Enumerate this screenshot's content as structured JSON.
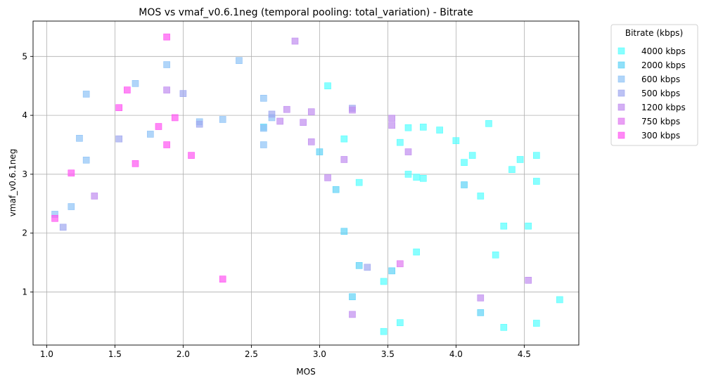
{
  "chart_data": {
    "type": "scatter",
    "title": "MOS vs vmaf_v0.6.1neg (temporal pooling: total_variation) - Bitrate",
    "xlabel": "MOS",
    "ylabel": "vmaf_v0.6.1neg",
    "xlim": [
      0.9,
      4.9
    ],
    "ylim": [
      0.1,
      5.6
    ],
    "xticks": [
      1.0,
      1.5,
      2.0,
      2.5,
      3.0,
      3.5,
      4.0,
      4.5
    ],
    "xtick_labels": [
      "1.0",
      "1.5",
      "2.0",
      "2.5",
      "3.0",
      "3.5",
      "4.0",
      "4.5"
    ],
    "yticks": [
      1,
      2,
      3,
      4,
      5
    ],
    "ytick_labels": [
      "1",
      "2",
      "3",
      "4",
      "5"
    ],
    "grid": true,
    "marker": "square",
    "legend": {
      "title": "Bitrate (kbps)",
      "placement": "outside-top-right"
    },
    "series": [
      {
        "name": "4000 kbps",
        "color": "#55ffff",
        "points": [
          [
            3.06,
            4.5
          ],
          [
            3.18,
            3.6
          ],
          [
            3.29,
            2.86
          ],
          [
            3.47,
            1.18
          ],
          [
            3.47,
            0.33
          ],
          [
            3.59,
            3.54
          ],
          [
            3.59,
            0.48
          ],
          [
            3.65,
            3.79
          ],
          [
            3.65,
            3.0
          ],
          [
            3.71,
            2.95
          ],
          [
            3.71,
            1.68
          ],
          [
            3.76,
            3.8
          ],
          [
            3.76,
            2.93
          ],
          [
            3.88,
            3.75
          ],
          [
            4.0,
            3.57
          ],
          [
            4.06,
            3.2
          ],
          [
            4.12,
            3.32
          ],
          [
            4.18,
            2.63
          ],
          [
            4.24,
            3.86
          ],
          [
            4.29,
            1.63
          ],
          [
            4.35,
            2.12
          ],
          [
            4.35,
            0.4
          ],
          [
            4.41,
            3.08
          ],
          [
            4.47,
            3.25
          ],
          [
            4.53,
            2.12
          ],
          [
            4.59,
            3.32
          ],
          [
            4.59,
            2.88
          ],
          [
            4.59,
            0.47
          ],
          [
            4.76,
            0.87
          ]
        ]
      },
      {
        "name": "2000 kbps",
        "color": "#5fd3f7",
        "points": [
          [
            2.59,
            3.8
          ],
          [
            3.0,
            3.38
          ],
          [
            3.12,
            2.74
          ],
          [
            3.18,
            2.03
          ],
          [
            3.24,
            0.92
          ],
          [
            3.29,
            1.45
          ],
          [
            3.53,
            1.36
          ],
          [
            4.06,
            2.82
          ],
          [
            4.18,
            0.65
          ]
        ]
      },
      {
        "name": "600 kbps",
        "color": "#8fc3f7",
        "points": [
          [
            1.06,
            2.32
          ],
          [
            1.18,
            2.45
          ],
          [
            1.24,
            3.61
          ],
          [
            1.29,
            4.36
          ],
          [
            1.29,
            3.24
          ],
          [
            1.65,
            4.54
          ],
          [
            1.76,
            3.68
          ],
          [
            1.88,
            4.86
          ],
          [
            2.12,
            3.89
          ],
          [
            2.29,
            3.93
          ],
          [
            2.41,
            4.93
          ],
          [
            2.59,
            4.29
          ],
          [
            2.59,
            3.78
          ],
          [
            2.59,
            3.5
          ],
          [
            2.65,
            3.96
          ]
        ]
      },
      {
        "name": "500 kbps",
        "color": "#a0a8f0",
        "points": [
          [
            1.12,
            2.1
          ],
          [
            1.53,
            3.6
          ],
          [
            2.0,
            4.37
          ],
          [
            2.12,
            3.85
          ],
          [
            2.65,
            4.02
          ],
          [
            3.24,
            4.12
          ],
          [
            3.35,
            1.42
          ]
        ]
      },
      {
        "name": "1200 kbps",
        "color": "#c08df0",
        "points": [
          [
            1.35,
            2.63
          ],
          [
            1.88,
            4.43
          ],
          [
            2.71,
            3.9
          ],
          [
            2.76,
            4.1
          ],
          [
            2.82,
            5.26
          ],
          [
            2.88,
            3.88
          ],
          [
            2.94,
            4.06
          ],
          [
            2.94,
            3.55
          ],
          [
            3.06,
            2.94
          ],
          [
            3.18,
            3.25
          ],
          [
            3.24,
            4.09
          ],
          [
            3.24,
            0.62
          ],
          [
            3.53,
            3.95
          ],
          [
            3.53,
            3.83
          ],
          [
            3.65,
            3.38
          ],
          [
            4.18,
            0.9
          ],
          [
            4.53,
            1.2
          ]
        ]
      },
      {
        "name": "750 kbps",
        "color": "#df78f0",
        "points": [
          [
            3.59,
            1.48
          ]
        ]
      },
      {
        "name": "300 kbps",
        "color": "#ff55f2",
        "points": [
          [
            1.06,
            2.25
          ],
          [
            1.18,
            3.02
          ],
          [
            1.53,
            4.13
          ],
          [
            1.59,
            4.43
          ],
          [
            1.65,
            3.18
          ],
          [
            1.82,
            3.81
          ],
          [
            1.88,
            5.33
          ],
          [
            1.88,
            3.5
          ],
          [
            1.94,
            3.96
          ],
          [
            2.06,
            3.32
          ],
          [
            2.29,
            1.22
          ]
        ]
      }
    ]
  }
}
